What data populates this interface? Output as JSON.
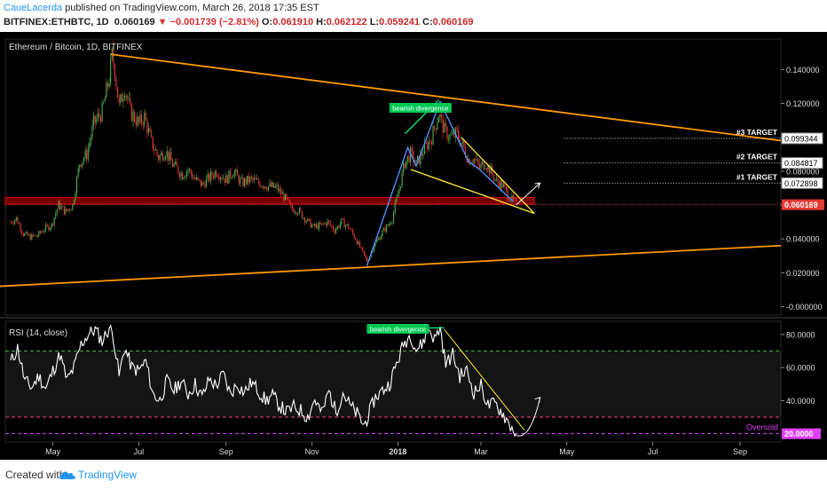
{
  "header": {
    "author": "CaueLacerda",
    "published": " published on TradingView.com, March 26, 2018 17:35 EST",
    "symbol": "BITFINEX:ETHBTC, 1D",
    "last": "0.060169",
    "change": "▼ −0.001739 (−2.81%)",
    "o_label": "O:",
    "o": "0.061910",
    "h_label": "H:",
    "h": "0.062122",
    "l_label": "L:",
    "l": "0.059241",
    "c_label": "C:",
    "c": "0.060169"
  },
  "price_panel": {
    "title": "Ethereum / Bitcoin, 1D, BITFINEX",
    "annotation": "bearish divergence",
    "targets": [
      "#3 TARGET",
      "#2 TARGET",
      "#1 TARGET"
    ],
    "target_values": [
      "0.099344",
      "0.084817",
      "0.072898"
    ],
    "extra_tick": "0.080000",
    "current_price": "0.060169"
  },
  "rsi_panel": {
    "title": "RSI (14, close)",
    "annotation": "bearish divergence",
    "oversold_label": "Oversold",
    "oversold_value": "20.0000"
  },
  "colors": {
    "bg": "#000000",
    "up": "#4caf50",
    "down": "#e53935",
    "trend": "#ff9800",
    "wedge": "#ffeb3b",
    "pattern": "#4f8ff7",
    "support": "#d50000",
    "rsi_line": "#ffffff",
    "oversold": "#e040fb",
    "overbought": "#4caf50",
    "price_label": "#e53935"
  },
  "chart_data": [
    {
      "type": "candlestick",
      "title": "Ethereum / Bitcoin, 1D, BITFINEX",
      "ylim": [
        -0.005,
        0.158
      ],
      "y_ticks": [
        "0.140000",
        "0.120000",
        "0.100000",
        "0.080000",
        "0.060000",
        "0.040000",
        "0.020000",
        "-0.000000"
      ],
      "x_ticks": [
        "May",
        "Jul",
        "Sep",
        "Nov",
        "2018",
        "Mar",
        "May",
        "Jul",
        "Sep"
      ],
      "close_path": [
        [
          "2017-04-01",
          0.05
        ],
        [
          "2017-04-05",
          0.052
        ],
        [
          "2017-04-10",
          0.043
        ],
        [
          "2017-04-15",
          0.041
        ],
        [
          "2017-04-20",
          0.042
        ],
        [
          "2017-04-25",
          0.046
        ],
        [
          "2017-04-30",
          0.048
        ],
        [
          "2017-05-05",
          0.06
        ],
        [
          "2017-05-10",
          0.056
        ],
        [
          "2017-05-15",
          0.06
        ],
        [
          "2017-05-20",
          0.085
        ],
        [
          "2017-05-25",
          0.09
        ],
        [
          "2017-05-30",
          0.108
        ],
        [
          "2017-06-05",
          0.115
        ],
        [
          "2017-06-10",
          0.135
        ],
        [
          "2017-06-12",
          0.148
        ],
        [
          "2017-06-14",
          0.14
        ],
        [
          "2017-06-17",
          0.118
        ],
        [
          "2017-06-21",
          0.13
        ],
        [
          "2017-06-25",
          0.115
        ],
        [
          "2017-07-01",
          0.108
        ],
        [
          "2017-07-05",
          0.112
        ],
        [
          "2017-07-10",
          0.097
        ],
        [
          "2017-07-15",
          0.088
        ],
        [
          "2017-07-20",
          0.092
        ],
        [
          "2017-07-25",
          0.084
        ],
        [
          "2017-08-01",
          0.078
        ],
        [
          "2017-08-05",
          0.081
        ],
        [
          "2017-08-10",
          0.075
        ],
        [
          "2017-08-15",
          0.072
        ],
        [
          "2017-08-20",
          0.076
        ],
        [
          "2017-08-25",
          0.08
        ],
        [
          "2017-09-01",
          0.075
        ],
        [
          "2017-09-06",
          0.08
        ],
        [
          "2017-09-12",
          0.073
        ],
        [
          "2017-09-18",
          0.075
        ],
        [
          "2017-09-25",
          0.073
        ],
        [
          "2017-10-01",
          0.071
        ],
        [
          "2017-10-07",
          0.07
        ],
        [
          "2017-10-12",
          0.065
        ],
        [
          "2017-10-17",
          0.058
        ],
        [
          "2017-10-22",
          0.057
        ],
        [
          "2017-10-27",
          0.052
        ],
        [
          "2017-11-02",
          0.047
        ],
        [
          "2017-11-08",
          0.048
        ],
        [
          "2017-11-12",
          0.05
        ],
        [
          "2017-11-17",
          0.045
        ],
        [
          "2017-11-22",
          0.05
        ],
        [
          "2017-11-27",
          0.047
        ],
        [
          "2017-12-02",
          0.04
        ],
        [
          "2017-12-07",
          0.032
        ],
        [
          "2017-12-10",
          0.027
        ],
        [
          "2017-12-12",
          0.03
        ],
        [
          "2017-12-15",
          0.036
        ],
        [
          "2017-12-18",
          0.04
        ],
        [
          "2017-12-22",
          0.045
        ],
        [
          "2017-12-25",
          0.048
        ],
        [
          "2017-12-28",
          0.052
        ],
        [
          "2018-01-02",
          0.07
        ],
        [
          "2018-01-06",
          0.085
        ],
        [
          "2018-01-10",
          0.09
        ],
        [
          "2018-01-14",
          0.084
        ],
        [
          "2018-01-19",
          0.092
        ],
        [
          "2018-01-25",
          0.1
        ],
        [
          "2018-01-30",
          0.114
        ],
        [
          "2018-02-03",
          0.104
        ],
        [
          "2018-02-07",
          0.1
        ],
        [
          "2018-02-12",
          0.102
        ],
        [
          "2018-02-16",
          0.095
        ],
        [
          "2018-02-20",
          0.087
        ],
        [
          "2018-02-24",
          0.087
        ],
        [
          "2018-02-28",
          0.082
        ],
        [
          "2018-03-04",
          0.085
        ],
        [
          "2018-03-08",
          0.08
        ],
        [
          "2018-03-12",
          0.074
        ],
        [
          "2018-03-16",
          0.072
        ],
        [
          "2018-03-20",
          0.066
        ],
        [
          "2018-03-24",
          0.062
        ],
        [
          "2018-03-26",
          0.06
        ]
      ],
      "annotations": {
        "upper_trendline": [
          [
            "2017-06-11",
            0.149
          ],
          [
            "2018-09-30",
            0.098
          ]
        ],
        "lower_trendline": [
          [
            "2017-03-01",
            0.011
          ],
          [
            "2018-09-30",
            0.036
          ]
        ],
        "support_zone": [
          0.0605,
          0.0645
        ],
        "bearish_divergence_label": "bearish divergence",
        "targets": [
          {
            "label": "#3 TARGET",
            "value": 0.099344
          },
          {
            "label": "#2 TARGET",
            "value": 0.084817
          },
          {
            "label": "#1 TARGET",
            "value": 0.072898
          }
        ]
      }
    },
    {
      "type": "line",
      "title": "RSI (14, close)",
      "ylim": [
        15,
        88
      ],
      "y_ticks": [
        "80.0000",
        "60.0000",
        "40.0000",
        "20.0000"
      ],
      "levels": {
        "overbought": 70,
        "middle": 50,
        "lower": 30,
        "oversold": 20
      },
      "x": [
        "2017-04-01",
        "2017-04-06",
        "2017-04-11",
        "2017-04-16",
        "2017-04-21",
        "2017-04-26",
        "2017-05-01",
        "2017-05-06",
        "2017-05-11",
        "2017-05-16",
        "2017-05-21",
        "2017-05-26",
        "2017-05-31",
        "2017-06-05",
        "2017-06-10",
        "2017-06-13",
        "2017-06-17",
        "2017-06-21",
        "2017-06-26",
        "2017-07-01",
        "2017-07-06",
        "2017-07-11",
        "2017-07-16",
        "2017-07-21",
        "2017-07-26",
        "2017-07-31",
        "2017-08-05",
        "2017-08-10",
        "2017-08-15",
        "2017-08-20",
        "2017-08-25",
        "2017-08-30",
        "2017-09-04",
        "2017-09-09",
        "2017-09-14",
        "2017-09-19",
        "2017-09-24",
        "2017-09-29",
        "2017-10-04",
        "2017-10-09",
        "2017-10-14",
        "2017-10-19",
        "2017-10-24",
        "2017-10-29",
        "2017-11-03",
        "2017-11-08",
        "2017-11-13",
        "2017-11-18",
        "2017-11-23",
        "2017-11-28",
        "2017-12-03",
        "2017-12-08",
        "2017-12-12",
        "2017-12-16",
        "2017-12-21",
        "2017-12-26",
        "2017-12-31",
        "2018-01-05",
        "2018-01-10",
        "2018-01-14",
        "2018-01-18",
        "2018-01-23",
        "2018-01-27",
        "2018-01-31",
        "2018-02-04",
        "2018-02-09",
        "2018-02-14",
        "2018-02-19",
        "2018-02-24",
        "2018-03-01",
        "2018-03-06",
        "2018-03-11",
        "2018-03-16",
        "2018-03-21",
        "2018-03-26"
      ],
      "values": [
        63,
        72,
        52,
        48,
        55,
        47,
        58,
        68,
        52,
        60,
        74,
        80,
        83,
        76,
        84,
        79,
        55,
        72,
        60,
        58,
        64,
        44,
        40,
        52,
        46,
        52,
        44,
        50,
        42,
        53,
        49,
        56,
        44,
        50,
        45,
        51,
        46,
        40,
        43,
        37,
        33,
        36,
        34,
        30,
        41,
        32,
        46,
        33,
        45,
        37,
        32,
        25,
        33,
        42,
        46,
        50,
        62,
        74,
        80,
        71,
        74,
        84,
        77,
        84,
        62,
        68,
        55,
        58,
        45,
        49,
        37,
        38,
        33,
        26,
        20
      ],
      "trendline": [
        [
          "2018-02-03",
          83
        ],
        [
          "2018-04-01",
          22
        ]
      ]
    }
  ]
}
